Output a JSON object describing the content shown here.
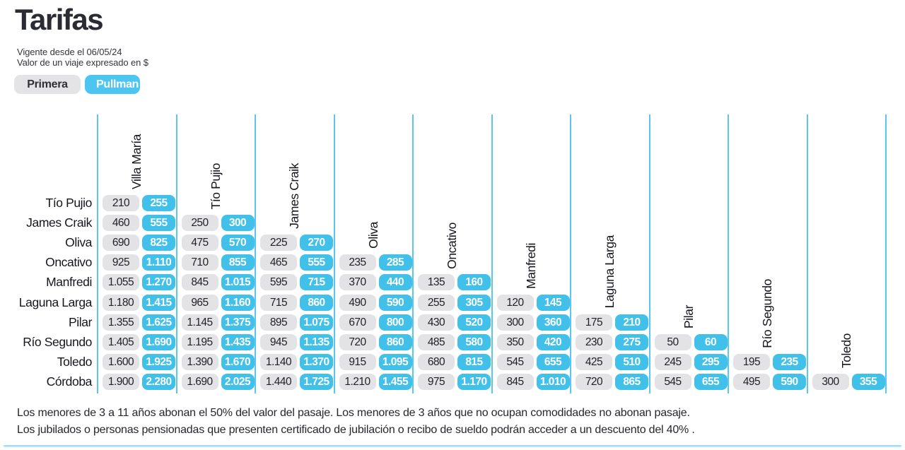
{
  "header": {
    "title": "Tarifas",
    "subtitle_line1": "Vigente desde el 06/05/24",
    "subtitle_line2": "Valor de un viaje expresado en $"
  },
  "tabs": [
    {
      "label": "Primera",
      "active": false
    },
    {
      "label": "Pullman",
      "active": true
    }
  ],
  "colors": {
    "pullman_blue": "#41c0ea",
    "tab_blue": "#4cc6f1",
    "primera_gray": "#e3e3e5",
    "grid_line": "#5ac7ee",
    "text_dark": "#2b2b33",
    "bottom_strip": "#8fd7f3"
  },
  "chart_data": {
    "type": "table",
    "title": "Tarifas",
    "unit": "$ por viaje",
    "series_names": [
      "Primera",
      "Pullman"
    ],
    "columns": [
      "Villa María",
      "Tío Pujio",
      "James Craik",
      "Oliva",
      "Oncativo",
      "Manfredi",
      "Laguna Larga",
      "Pilar",
      "Río Segundo",
      "Toledo"
    ],
    "rows": [
      {
        "label": "Tío Pujio",
        "cells": [
          [
            "210",
            "255"
          ]
        ]
      },
      {
        "label": "James Craik",
        "cells": [
          [
            "460",
            "555"
          ],
          [
            "250",
            "300"
          ]
        ]
      },
      {
        "label": "Oliva",
        "cells": [
          [
            "690",
            "825"
          ],
          [
            "475",
            "570"
          ],
          [
            "225",
            "270"
          ]
        ]
      },
      {
        "label": "Oncativo",
        "cells": [
          [
            "925",
            "1.110"
          ],
          [
            "710",
            "855"
          ],
          [
            "465",
            "555"
          ],
          [
            "235",
            "285"
          ]
        ]
      },
      {
        "label": "Manfredi",
        "cells": [
          [
            "1.055",
            "1.270"
          ],
          [
            "845",
            "1.015"
          ],
          [
            "595",
            "715"
          ],
          [
            "370",
            "440"
          ],
          [
            "135",
            "160"
          ]
        ]
      },
      {
        "label": "Laguna Larga",
        "cells": [
          [
            "1.180",
            "1.415"
          ],
          [
            "965",
            "1.160"
          ],
          [
            "715",
            "860"
          ],
          [
            "490",
            "590"
          ],
          [
            "255",
            "305"
          ],
          [
            "120",
            "145"
          ]
        ]
      },
      {
        "label": "Pilar",
        "cells": [
          [
            "1.355",
            "1.625"
          ],
          [
            "1.145",
            "1.375"
          ],
          [
            "895",
            "1.075"
          ],
          [
            "670",
            "800"
          ],
          [
            "430",
            "520"
          ],
          [
            "300",
            "360"
          ],
          [
            "175",
            "210"
          ]
        ]
      },
      {
        "label": "Río Segundo",
        "cells": [
          [
            "1.405",
            "1.690"
          ],
          [
            "1.195",
            "1.435"
          ],
          [
            "945",
            "1.135"
          ],
          [
            "720",
            "860"
          ],
          [
            "485",
            "580"
          ],
          [
            "350",
            "420"
          ],
          [
            "230",
            "275"
          ],
          [
            "50",
            "60"
          ]
        ]
      },
      {
        "label": "Toledo",
        "cells": [
          [
            "1.600",
            "1.925"
          ],
          [
            "1.390",
            "1.670"
          ],
          [
            "1.140",
            "1.370"
          ],
          [
            "915",
            "1.095"
          ],
          [
            "680",
            "815"
          ],
          [
            "545",
            "655"
          ],
          [
            "425",
            "510"
          ],
          [
            "245",
            "295"
          ],
          [
            "195",
            "235"
          ]
        ]
      },
      {
        "label": "Córdoba",
        "cells": [
          [
            "1.900",
            "2.280"
          ],
          [
            "1.690",
            "2.025"
          ],
          [
            "1.440",
            "1.725"
          ],
          [
            "1.210",
            "1.455"
          ],
          [
            "975",
            "1.170"
          ],
          [
            "845",
            "1.010"
          ],
          [
            "720",
            "865"
          ],
          [
            "545",
            "655"
          ],
          [
            "495",
            "590"
          ],
          [
            "300",
            "355"
          ]
        ]
      }
    ]
  },
  "notes": {
    "line1": "Los menores de 3 a 11 años abonan el 50% del valor del pasaje. Los menores de 3 años que no ocupan comodidades no abonan pasaje.",
    "line2": "Los jubilados o personas pensionadas que presenten certificado de jubilación o recibo de sueldo podrán acceder a un descuento del 40% ."
  }
}
